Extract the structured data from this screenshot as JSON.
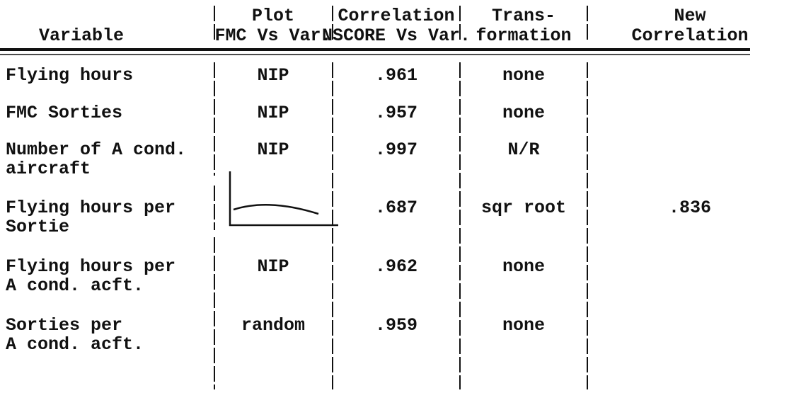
{
  "table": {
    "header": [
      [
        "Variable"
      ],
      [
        "Plot",
        "FMC Vs Var."
      ],
      [
        "Correlation",
        "NSCORE Vs Var."
      ],
      [
        "Trans-",
        "formation"
      ],
      [
        "New",
        "Correlation"
      ]
    ],
    "rows": [
      {
        "variable": [
          "Flying hours"
        ],
        "plot": "NIP",
        "correlation": ".961",
        "transformation": "none"
      },
      {
        "variable": [
          "FMC Sorties"
        ],
        "plot": "NIP",
        "correlation": ".957",
        "transformation": "none"
      },
      {
        "variable": [
          "Number of A cond.",
          "aircraft"
        ],
        "plot": "NIP",
        "correlation": ".997",
        "transformation": "N/R"
      },
      {
        "variable": [
          "Flying hours per",
          "Sortie"
        ],
        "correlation": ".687",
        "transformation": "sqr root",
        "new_correlation": ".836"
      },
      {
        "variable": [
          "Flying hours per",
          "A cond. acft."
        ],
        "plot": "NIP",
        "correlation": ".962",
        "transformation": "none"
      },
      {
        "variable": [
          "Sorties per",
          "A cond. acft."
        ],
        "plot": "random",
        "correlation": ".959",
        "transformation": "none"
      }
    ]
  }
}
